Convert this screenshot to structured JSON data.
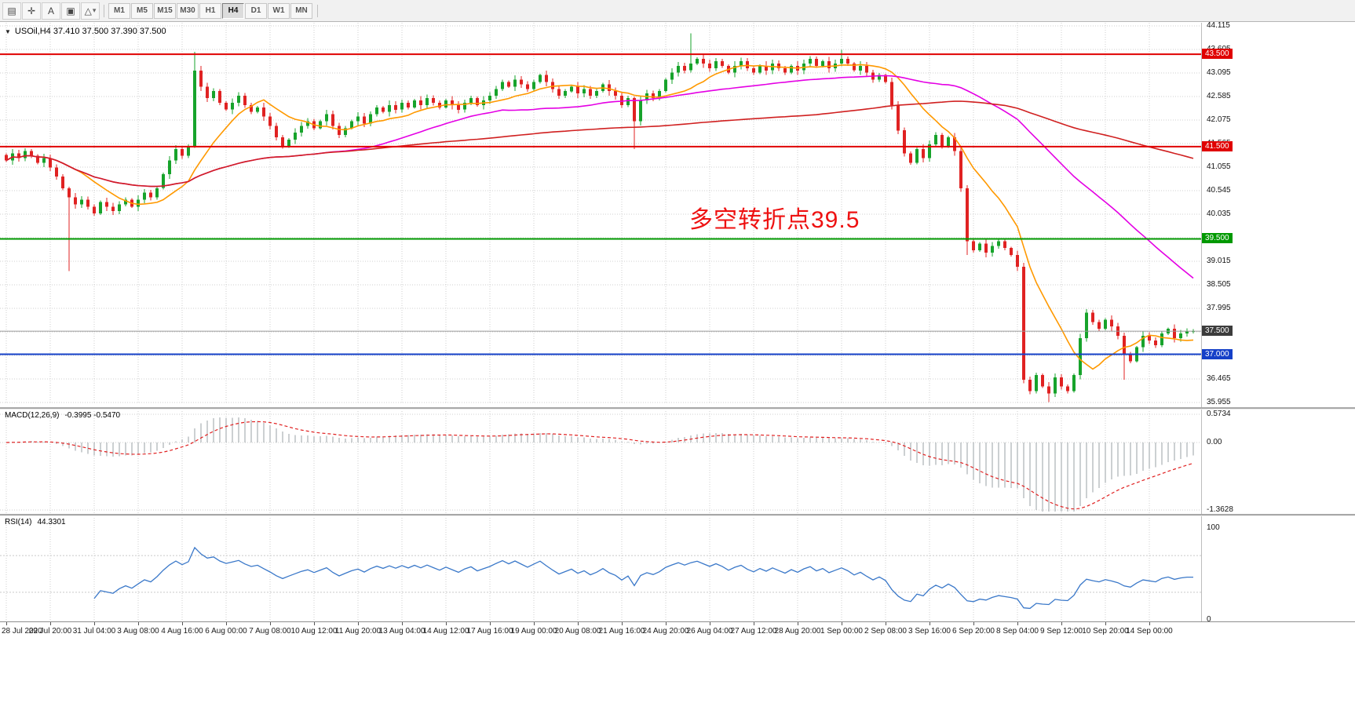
{
  "toolbar": {
    "icons": {
      "windows": "▤",
      "crosshair": "✛",
      "text_tool": "A",
      "frame": "▣",
      "shapes": "△",
      "caret": "▾"
    },
    "timeframes": [
      "M1",
      "M5",
      "M15",
      "M30",
      "H1",
      "H4",
      "D1",
      "W1",
      "MN"
    ],
    "active_timeframe": "H4"
  },
  "chart_header": {
    "caret": "▼",
    "readout": "USOil,H4  37.410 37.500 37.390 37.500"
  },
  "chart_data": {
    "type": "candlestick",
    "symbol": "USOil",
    "timeframe": "H4",
    "ohlc": {
      "open": 37.41,
      "high": 37.5,
      "low": 37.39,
      "close": 37.5
    },
    "price_axis_ticks": [
      "44.115",
      "43.605",
      "43.095",
      "42.585",
      "42.075",
      "41.565",
      "41.055",
      "40.545",
      "40.035",
      "39.525",
      "39.015",
      "38.505",
      "37.995",
      "37.485",
      "36.975",
      "36.465",
      "35.955"
    ],
    "time_labels": [
      "28 Jul 2020",
      "29 Jul 20:00",
      "31 Jul 04:00",
      "3 Aug 08:00",
      "4 Aug 16:00",
      "6 Aug 00:00",
      "7 Aug 08:00",
      "10 Aug 12:00",
      "11 Aug 20:00",
      "13 Aug 04:00",
      "14 Aug 12:00",
      "17 Aug 16:00",
      "19 Aug 00:00",
      "20 Aug 08:00",
      "21 Aug 16:00",
      "24 Aug 20:00",
      "26 Aug 04:00",
      "27 Aug 12:00",
      "28 Aug 20:00",
      "1 Sep 00:00",
      "2 Sep 08:00",
      "3 Sep 16:00",
      "6 Sep 20:00",
      "8 Sep 04:00",
      "9 Sep 12:00",
      "10 Sep 20:00",
      "14 Sep 00:00"
    ],
    "bars_per_label": 7,
    "closes": [
      41.2,
      41.35,
      41.25,
      41.4,
      41.3,
      41.15,
      41.25,
      41.05,
      40.85,
      40.6,
      40.4,
      40.25,
      40.35,
      40.2,
      40.05,
      40.3,
      40.2,
      40.1,
      40.25,
      40.35,
      40.2,
      40.35,
      40.5,
      40.4,
      40.6,
      40.9,
      41.2,
      41.45,
      41.3,
      41.5,
      43.15,
      42.8,
      42.55,
      42.7,
      42.45,
      42.3,
      42.45,
      42.6,
      42.4,
      42.25,
      42.35,
      42.15,
      41.95,
      41.7,
      41.5,
      41.65,
      41.8,
      41.95,
      42.05,
      41.9,
      42.05,
      42.2,
      41.95,
      41.75,
      41.9,
      42.05,
      42.15,
      42.0,
      42.2,
      42.35,
      42.25,
      42.4,
      42.3,
      42.45,
      42.35,
      42.5,
      42.4,
      42.55,
      42.45,
      42.35,
      42.5,
      42.4,
      42.3,
      42.45,
      42.55,
      42.4,
      42.5,
      42.6,
      42.75,
      42.9,
      42.8,
      42.95,
      42.85,
      42.75,
      42.9,
      43.05,
      42.9,
      42.75,
      42.6,
      42.7,
      42.8,
      42.65,
      42.75,
      42.6,
      42.7,
      42.85,
      42.7,
      42.6,
      42.4,
      42.55,
      42.05,
      42.5,
      42.65,
      42.55,
      42.7,
      42.95,
      43.1,
      43.25,
      43.15,
      43.3,
      43.4,
      43.3,
      43.2,
      43.35,
      43.25,
      43.1,
      43.25,
      43.35,
      43.2,
      43.1,
      43.25,
      43.15,
      43.3,
      43.2,
      43.1,
      43.25,
      43.15,
      43.3,
      43.4,
      43.25,
      43.35,
      43.2,
      43.3,
      43.4,
      43.3,
      43.15,
      43.25,
      43.1,
      42.95,
      43.05,
      42.9,
      42.4,
      41.85,
      41.35,
      41.15,
      41.45,
      41.25,
      41.55,
      41.75,
      41.5,
      41.7,
      41.4,
      40.6,
      39.45,
      39.25,
      39.4,
      39.2,
      39.35,
      39.45,
      39.3,
      39.15,
      38.9,
      36.45,
      36.2,
      36.55,
      36.3,
      36.15,
      36.5,
      36.3,
      36.2,
      36.55,
      37.35,
      37.9,
      37.7,
      37.55,
      37.75,
      37.6,
      37.4,
      37.0,
      36.85,
      37.15,
      37.4,
      37.3,
      37.2,
      37.45,
      37.55,
      37.35,
      37.45,
      37.5,
      37.5
    ],
    "wick_overrides": {
      "10": {
        "low": 38.8
      },
      "30": {
        "high": 43.55
      },
      "100": {
        "low": 41.45
      },
      "109": {
        "high": 43.95
      },
      "133": {
        "high": 43.6
      },
      "153": {
        "low": 39.15
      },
      "166": {
        "low": 35.96
      },
      "178": {
        "low": 36.45
      }
    },
    "levels": [
      {
        "value": 43.5,
        "label": "43.500",
        "color": "#e00000",
        "width": 2
      },
      {
        "value": 41.5,
        "label": "41.500",
        "color": "#e00000",
        "width": 2
      },
      {
        "value": 39.5,
        "label": "39.500",
        "color": "#009900",
        "width": 2
      },
      {
        "value": 37.0,
        "label": "37.000",
        "color": "#1540c8",
        "width": 2
      },
      {
        "value": 37.5,
        "label": "37.500",
        "color": "#9a9a9a",
        "width": 1,
        "badge_color": "#3c3c3c"
      }
    ],
    "moving_averages": [
      {
        "period": 12,
        "color": "#ff9900",
        "name": "fast-ma"
      },
      {
        "period": 50,
        "color": "#e400e4",
        "name": "mid-ma"
      },
      {
        "period": 130,
        "color": "#d02020",
        "name": "slow-ma"
      }
    ],
    "colors": {
      "up": "#17a32b",
      "down": "#e02222",
      "grid": "#cfcfcf",
      "macd_hist": "#9aa0a6",
      "macd_signal": "#e02020",
      "rsi_line": "#3a78c9"
    },
    "annotation": {
      "text": "多空转折点39.5",
      "color": "#ee1111"
    },
    "macd": {
      "label": "MACD(12,26,9)",
      "readout": "-0.3995 -0.5470",
      "axis_labels": [
        "0.5734",
        "0.00",
        "-1.3628"
      ]
    },
    "rsi": {
      "label": "RSI(14)",
      "readout": "44.3301",
      "axis_labels": [
        "100",
        "0"
      ],
      "levels": [
        70,
        30
      ]
    }
  }
}
